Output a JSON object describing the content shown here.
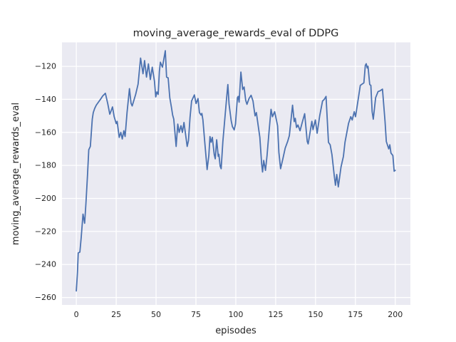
{
  "chart_data": {
    "type": "line",
    "title": "moving_average_rewards_eval of DDPG",
    "xlabel": "episodes",
    "ylabel": "moving_average_rewards_eval",
    "x_ticks": [
      0,
      25,
      50,
      75,
      100,
      125,
      150,
      175,
      200
    ],
    "y_ticks": [
      -120,
      -140,
      -160,
      -180,
      -200,
      -220,
      -240,
      -260
    ],
    "xlim": [
      -9,
      209.5
    ],
    "ylim": [
      -264.5,
      -105.5
    ],
    "grid": true,
    "legend": false,
    "style": {
      "fig_bg": "#ffffff",
      "plot_bg": "#eaeaf2",
      "grid_color": "#ffffff",
      "line_color": "#4c72b0",
      "text_color": "#262626"
    },
    "series": [
      {
        "name": "moving_average_rewards_eval",
        "points": [
          [
            0,
            -256
          ],
          [
            0.7,
            -245
          ],
          [
            1.2,
            -233
          ],
          [
            2.2,
            -232.5
          ],
          [
            3,
            -224
          ],
          [
            4.2,
            -209.5
          ],
          [
            5.2,
            -215
          ],
          [
            6,
            -203
          ],
          [
            7,
            -186
          ],
          [
            7.8,
            -170.5
          ],
          [
            8.8,
            -168.5
          ],
          [
            10,
            -152
          ],
          [
            10.6,
            -148
          ],
          [
            11.5,
            -145.5
          ],
          [
            12.5,
            -143.5
          ],
          [
            14,
            -141.5
          ],
          [
            15.5,
            -139.5
          ],
          [
            16.5,
            -138
          ],
          [
            18.2,
            -136.3
          ],
          [
            19.7,
            -142.5
          ],
          [
            21,
            -149
          ],
          [
            21.8,
            -147
          ],
          [
            22.7,
            -144.6
          ],
          [
            23.7,
            -150.4
          ],
          [
            25,
            -154.7
          ],
          [
            25.6,
            -153.3
          ],
          [
            26.9,
            -163
          ],
          [
            27.9,
            -160
          ],
          [
            28.8,
            -164
          ],
          [
            29.8,
            -159
          ],
          [
            30.6,
            -162.5
          ],
          [
            31.8,
            -148
          ],
          [
            33.3,
            -133.5
          ],
          [
            34.3,
            -142.3
          ],
          [
            35,
            -144
          ],
          [
            35.8,
            -141.5
          ],
          [
            37.2,
            -137
          ],
          [
            38.7,
            -130.8
          ],
          [
            40.3,
            -115
          ],
          [
            41.8,
            -124.5
          ],
          [
            42.8,
            -116.5
          ],
          [
            44,
            -126.5
          ],
          [
            45.2,
            -118.5
          ],
          [
            46.4,
            -128
          ],
          [
            47.6,
            -120.5
          ],
          [
            49,
            -129
          ],
          [
            49.8,
            -138.5
          ],
          [
            50.5,
            -135.5
          ],
          [
            51.3,
            -137
          ],
          [
            52.1,
            -123
          ],
          [
            52.7,
            -117.5
          ],
          [
            54,
            -120.5
          ],
          [
            55.8,
            -110.5
          ],
          [
            56.6,
            -126.5
          ],
          [
            57.6,
            -127
          ],
          [
            58.6,
            -139
          ],
          [
            59.6,
            -144.5
          ],
          [
            60.4,
            -149.5
          ],
          [
            61.1,
            -152
          ],
          [
            62.6,
            -168.5
          ],
          [
            63.6,
            -155
          ],
          [
            64.5,
            -160
          ],
          [
            65.6,
            -156
          ],
          [
            66.5,
            -160
          ],
          [
            67.5,
            -154
          ],
          [
            69.5,
            -168.5
          ],
          [
            70.3,
            -165
          ],
          [
            71.3,
            -151
          ],
          [
            72.3,
            -141
          ],
          [
            74,
            -137.3
          ],
          [
            75.1,
            -142.5
          ],
          [
            76.3,
            -139.5
          ],
          [
            77.2,
            -148
          ],
          [
            78.2,
            -149.5
          ],
          [
            78.7,
            -148.5
          ],
          [
            79.4,
            -152.5
          ],
          [
            80.5,
            -165.5
          ],
          [
            82,
            -182.5
          ],
          [
            83.1,
            -174
          ],
          [
            83.8,
            -162.5
          ],
          [
            84.5,
            -166
          ],
          [
            85.3,
            -163
          ],
          [
            86.5,
            -173.5
          ],
          [
            87.1,
            -176
          ],
          [
            88,
            -164.5
          ],
          [
            89,
            -174.5
          ],
          [
            89.4,
            -173.3
          ],
          [
            90.2,
            -180.5
          ],
          [
            90.8,
            -182
          ],
          [
            91.9,
            -165.5
          ],
          [
            93,
            -153
          ],
          [
            94.2,
            -139.5
          ],
          [
            95,
            -131
          ],
          [
            95.8,
            -143
          ],
          [
            97.1,
            -153
          ],
          [
            97.9,
            -156.5
          ],
          [
            99,
            -158.5
          ],
          [
            99.8,
            -155
          ],
          [
            101,
            -139
          ],
          [
            101.5,
            -138.2
          ],
          [
            102.1,
            -141.7
          ],
          [
            103.2,
            -123.5
          ],
          [
            104.3,
            -134
          ],
          [
            105.2,
            -132.5
          ],
          [
            106.2,
            -140.5
          ],
          [
            107,
            -143
          ],
          [
            108.3,
            -139.5
          ],
          [
            109.6,
            -137.5
          ],
          [
            110.8,
            -141
          ],
          [
            111.4,
            -145.5
          ],
          [
            112.1,
            -150
          ],
          [
            112.9,
            -148
          ],
          [
            114.4,
            -158.5
          ],
          [
            115.1,
            -163
          ],
          [
            116.2,
            -179
          ],
          [
            116.8,
            -184
          ],
          [
            117.5,
            -177
          ],
          [
            118.6,
            -183
          ],
          [
            119.6,
            -174
          ],
          [
            121,
            -158
          ],
          [
            122.1,
            -146
          ],
          [
            123,
            -150.5
          ],
          [
            124.4,
            -147.5
          ],
          [
            126.2,
            -156
          ],
          [
            127,
            -172
          ],
          [
            128.1,
            -182
          ],
          [
            129.5,
            -176
          ],
          [
            131,
            -169.5
          ],
          [
            132.5,
            -165.5
          ],
          [
            133.6,
            -162
          ],
          [
            135.6,
            -143.5
          ],
          [
            136.6,
            -153.5
          ],
          [
            137.3,
            -151.5
          ],
          [
            138.1,
            -157
          ],
          [
            139,
            -155.5
          ],
          [
            140.3,
            -159
          ],
          [
            141.8,
            -153.5
          ],
          [
            143.2,
            -148.7
          ],
          [
            144.8,
            -165.5
          ],
          [
            145.4,
            -167
          ],
          [
            147.7,
            -153.3
          ],
          [
            148.4,
            -158.3
          ],
          [
            149.9,
            -152.5
          ],
          [
            151,
            -160.5
          ],
          [
            152.6,
            -150
          ],
          [
            154.4,
            -141
          ],
          [
            155.5,
            -140
          ],
          [
            156.6,
            -138.2
          ],
          [
            158.1,
            -166
          ],
          [
            159.2,
            -167.5
          ],
          [
            160.3,
            -173.5
          ],
          [
            161.8,
            -186.5
          ],
          [
            162.5,
            -192
          ],
          [
            163.3,
            -185.5
          ],
          [
            164.3,
            -193
          ],
          [
            166,
            -181
          ],
          [
            167.5,
            -174.5
          ],
          [
            168.5,
            -166
          ],
          [
            170.7,
            -154.5
          ],
          [
            172.1,
            -150.5
          ],
          [
            173,
            -152.5
          ],
          [
            174.3,
            -147.5
          ],
          [
            175.1,
            -150.5
          ],
          [
            178.1,
            -131.5
          ],
          [
            180.3,
            -130
          ],
          [
            181.2,
            -119.5
          ],
          [
            181.8,
            -118.4
          ],
          [
            182.4,
            -121
          ],
          [
            182.9,
            -120
          ],
          [
            184,
            -131
          ],
          [
            184.7,
            -131.5
          ],
          [
            185.5,
            -147.5
          ],
          [
            186.2,
            -152
          ],
          [
            187.7,
            -139
          ],
          [
            189.2,
            -135.3
          ],
          [
            190.5,
            -134.8
          ],
          [
            192,
            -133.8
          ],
          [
            193.6,
            -153.3
          ],
          [
            194.4,
            -165.5
          ],
          [
            195.9,
            -170
          ],
          [
            196.6,
            -167.5
          ],
          [
            197.3,
            -172.5
          ],
          [
            198.5,
            -174
          ],
          [
            199.3,
            -183.5
          ],
          [
            200,
            -183
          ]
        ]
      }
    ]
  }
}
